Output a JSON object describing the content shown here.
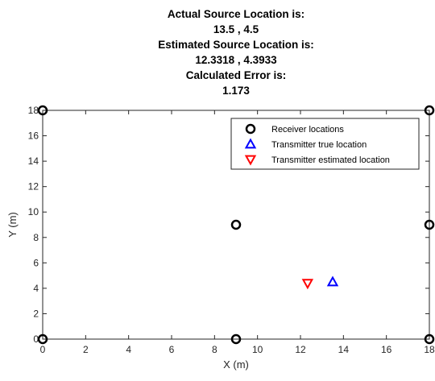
{
  "chart_data": {
    "type": "scatter",
    "title_lines": [
      "Actual Source Location is:",
      "13.5  ,  4.5",
      "Estimated Source Location is:",
      "12.3318  ,  4.3933",
      "Calculated Error is:",
      "1.173"
    ],
    "xlabel": "X (m)",
    "ylabel": "Y (m)",
    "xlim": [
      0,
      18
    ],
    "ylim": [
      0,
      18
    ],
    "xticks": [
      0,
      2,
      4,
      6,
      8,
      10,
      12,
      14,
      16,
      18
    ],
    "yticks": [
      0,
      2,
      4,
      6,
      8,
      10,
      12,
      14,
      16,
      18
    ],
    "grid": false,
    "legend_position": "top-right",
    "series": [
      {
        "name": "Receiver locations",
        "marker": "circle",
        "color": "#000000",
        "points": [
          [
            0,
            0
          ],
          [
            0,
            18
          ],
          [
            18,
            0
          ],
          [
            18,
            18
          ],
          [
            9,
            0
          ],
          [
            9,
            9
          ],
          [
            18,
            9
          ]
        ]
      },
      {
        "name": "Transmitter true location",
        "marker": "triangle-up",
        "color": "#0000ff",
        "points": [
          [
            13.5,
            4.5
          ]
        ]
      },
      {
        "name": "Transmitter estimated location",
        "marker": "triangle-down",
        "color": "#ff0000",
        "points": [
          [
            12.3318,
            4.3933
          ]
        ]
      }
    ]
  }
}
